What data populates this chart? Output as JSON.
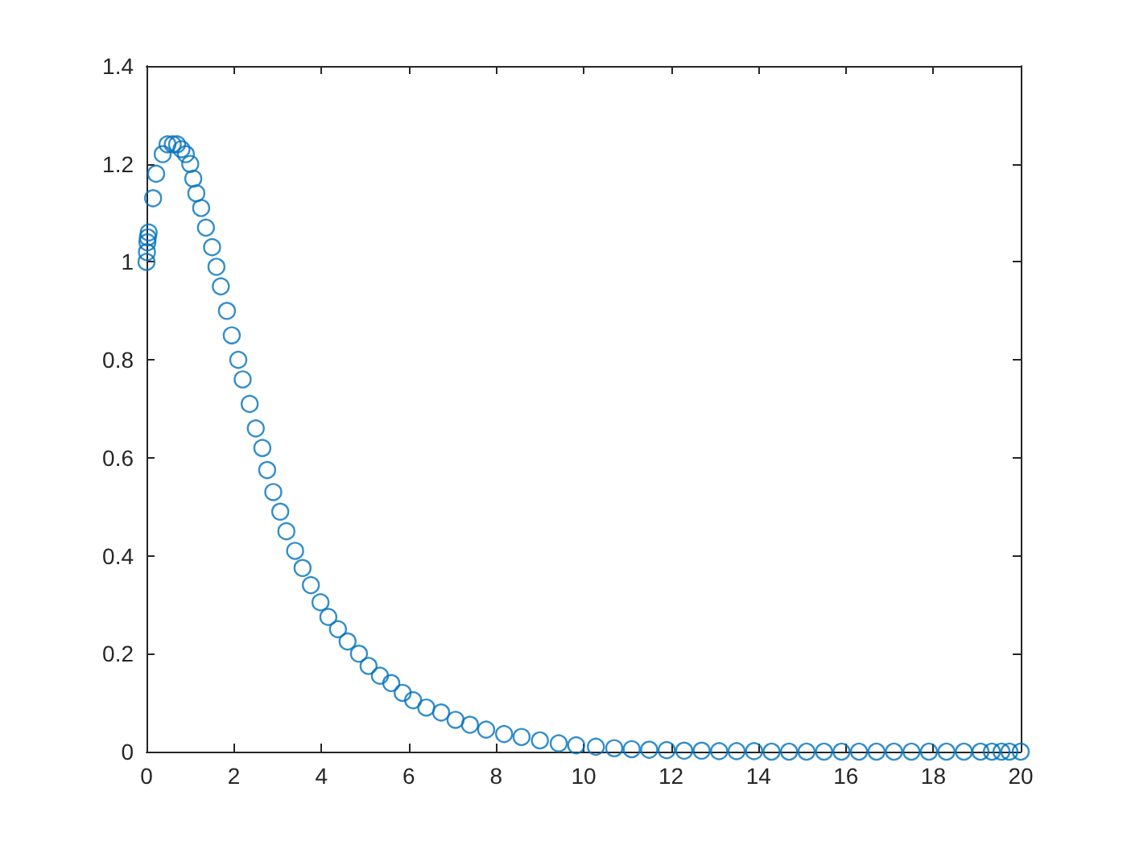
{
  "chart_data": {
    "type": "scatter",
    "marker": "circle",
    "grid": false,
    "xlim": [
      0,
      20
    ],
    "xticks": [
      0,
      2,
      4,
      6,
      8,
      10,
      12,
      14,
      16,
      18,
      20
    ],
    "ylim": [
      0,
      1.4
    ],
    "yticks": [
      0,
      0.2,
      0.4,
      0.6,
      0.8,
      1,
      1.2,
      1.4
    ],
    "series": [
      {
        "color": "#0072bd",
        "x": [
          0,
          0.01,
          0.02,
          0.03,
          0.05,
          0.15,
          0.22,
          0.37,
          0.48,
          0.6,
          0.7,
          0.8,
          0.9,
          1.0,
          1.07,
          1.14,
          1.25,
          1.36,
          1.5,
          1.6,
          1.7,
          1.84,
          1.95,
          2.1,
          2.2,
          2.36,
          2.5,
          2.65,
          2.76,
          2.9,
          3.06,
          3.2,
          3.4,
          3.57,
          3.76,
          3.98,
          4.16,
          4.38,
          4.6,
          4.86,
          5.08,
          5.34,
          5.6,
          5.86,
          6.1,
          6.4,
          6.74,
          7.07,
          7.4,
          7.77,
          8.18,
          8.58,
          9.0,
          9.43,
          9.83,
          10.28,
          10.7,
          11.1,
          11.5,
          11.9,
          12.3,
          12.7,
          13.1,
          13.5,
          13.9,
          14.3,
          14.7,
          15.1,
          15.5,
          15.9,
          16.3,
          16.7,
          17.1,
          17.5,
          17.9,
          18.3,
          18.7,
          19.08,
          19.34,
          19.56,
          19.74,
          20
        ],
        "values": [
          1.0,
          1.02,
          1.04,
          1.05,
          1.06,
          1.13,
          1.18,
          1.22,
          1.24,
          1.24,
          1.24,
          1.23,
          1.22,
          1.2,
          1.17,
          1.14,
          1.11,
          1.07,
          1.03,
          0.99,
          0.95,
          0.9,
          0.85,
          0.8,
          0.76,
          0.71,
          0.66,
          0.62,
          0.575,
          0.53,
          0.49,
          0.45,
          0.41,
          0.375,
          0.34,
          0.305,
          0.275,
          0.25,
          0.225,
          0.2,
          0.175,
          0.155,
          0.14,
          0.12,
          0.105,
          0.09,
          0.08,
          0.065,
          0.055,
          0.045,
          0.036,
          0.03,
          0.023,
          0.017,
          0.013,
          0.01,
          0.007,
          0.005,
          0.004,
          0.003,
          0.002,
          0.002,
          0.001,
          0.001,
          0.001,
          0,
          0,
          0,
          0,
          0,
          0,
          0,
          0,
          0,
          0,
          0,
          0,
          0,
          0,
          0,
          0,
          0
        ]
      }
    ]
  }
}
